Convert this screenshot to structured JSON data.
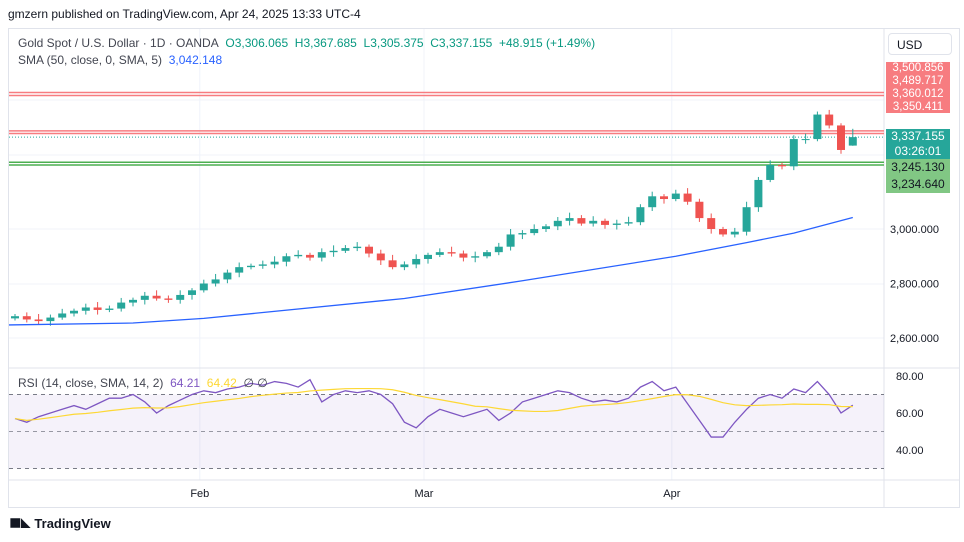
{
  "header": {
    "published": "gmzern published on TradingView.com, Apr 24, 2025 13:33 UTC-4"
  },
  "legend": {
    "symbol": "Gold Spot / U.S. Dollar · 1D · OANDA",
    "o": "O3,306.065",
    "h": "H3,367.685",
    "l": "L3,305.375",
    "c": "C3,337.155",
    "change": "+48.915 (+1.49%)",
    "sma_label": "SMA (50, close, 0, SMA, 5)",
    "sma_value": "3,042.148"
  },
  "rsi_legend": {
    "label": "RSI (14, close, SMA, 14, 2)",
    "rsi": "64.21",
    "rsi_ma": "64.42",
    "n1": "∅",
    "n2": "∅"
  },
  "axis": {
    "currency": "USD",
    "price_ticks": [
      "3,000.000",
      "2,800.000",
      "2,600.000"
    ],
    "rsi_ticks": [
      "80.00",
      "60.00",
      "40.00"
    ],
    "time_ticks": [
      "Feb",
      "Mar",
      "Apr"
    ]
  },
  "price_labels": {
    "red": [
      "3,500.856",
      "3,489.717",
      "3,360.012",
      "3,350.411"
    ],
    "current": "3,337.155",
    "countdown": "03:26:01",
    "green": [
      "3,245.130",
      "3,234.640"
    ]
  },
  "footer": {
    "brand": "TradingView"
  },
  "colors": {
    "up": "#26a69a",
    "down": "#ef5350",
    "sma": "#2962ff",
    "rsi": "#7e57c2",
    "rsi_ma": "#fdd835"
  },
  "chart_data": {
    "type": "candlestick",
    "title": "Gold Spot / U.S. Dollar · 1D · OANDA",
    "ylim": [
      2520,
      3570
    ],
    "closes": [
      2680,
      2668,
      2662,
      2675,
      2690,
      2700,
      2712,
      2703,
      2708,
      2730,
      2740,
      2755,
      2745,
      2740,
      2758,
      2775,
      2800,
      2815,
      2840,
      2860,
      2865,
      2870,
      2880,
      2900,
      2905,
      2895,
      2915,
      2920,
      2930,
      2935,
      2910,
      2885,
      2860,
      2870,
      2890,
      2905,
      2915,
      2910,
      2895,
      2900,
      2915,
      2935,
      2980,
      2985,
      3000,
      3010,
      3030,
      3040,
      3020,
      3030,
      3015,
      3020,
      3025,
      3080,
      3120,
      3110,
      3130,
      3100,
      3040,
      3000,
      2980,
      2990,
      3080,
      3180,
      3235,
      3230,
      3330,
      3330,
      3420,
      3380,
      3290,
      3337.155
    ],
    "last_candle": {
      "open": 3306.065,
      "high": 3367.685,
      "low": 3305.375,
      "close": 3337.155
    },
    "sma50": [
      [
        0,
        2648
      ],
      [
        10,
        2655
      ],
      [
        16,
        2672
      ],
      [
        33,
        2745
      ],
      [
        43,
        2810
      ],
      [
        56,
        2900
      ],
      [
        62,
        2950
      ],
      [
        66,
        2985
      ],
      [
        71,
        3042
      ]
    ],
    "levels": {
      "resistance": [
        3500.856,
        3489.717,
        3360.012,
        3350.411
      ],
      "support": [
        3245.13,
        3234.64
      ],
      "current": 3337.155
    },
    "rsi": [
      57,
      55,
      58,
      60,
      62,
      64,
      62,
      65,
      68,
      68,
      70,
      66,
      60,
      64,
      67,
      70,
      72,
      71,
      73,
      74,
      76,
      75,
      77,
      76,
      74,
      78,
      66,
      70,
      72,
      71,
      72,
      70,
      65,
      55,
      52,
      58,
      62,
      60,
      58,
      60,
      62,
      56,
      60,
      66,
      68,
      70,
      72,
      71,
      68,
      66,
      67,
      66,
      68,
      74,
      77,
      72,
      74,
      65,
      56,
      47,
      47,
      55,
      62,
      68,
      70,
      68,
      73,
      71,
      77,
      70,
      60,
      64.21
    ],
    "rsi_levels": [
      70,
      50,
      30
    ],
    "x_labels": [
      {
        "index": 16,
        "label": "Feb"
      },
      {
        "index": 35,
        "label": "Mar"
      },
      {
        "index": 56,
        "label": "Apr"
      }
    ]
  }
}
